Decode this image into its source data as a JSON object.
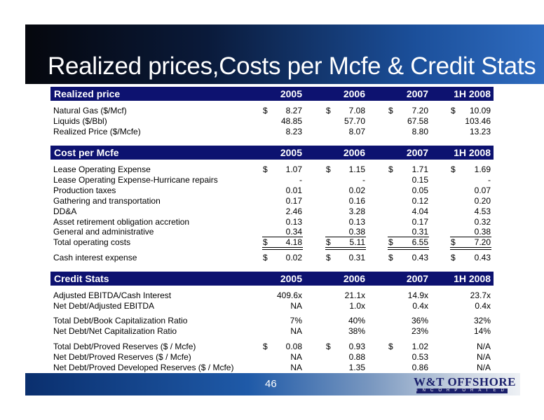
{
  "title": "Realized prices,Costs per Mcfe & Credit Stats",
  "columns": [
    "2005",
    "2006",
    "2007",
    "1H 2008"
  ],
  "realized": {
    "header": "Realized price",
    "rows": [
      {
        "label": "Natural Gas ($/Mcf)",
        "dollar": true,
        "values": [
          "8.27",
          "7.08",
          "7.20",
          "10.09"
        ]
      },
      {
        "label": "Liquids ($/Bbl)",
        "dollar": false,
        "values": [
          "48.85",
          "57.70",
          "67.58",
          "103.46"
        ]
      },
      {
        "label": "Realized Price ($/Mcfe)",
        "dollar": false,
        "values": [
          "8.23",
          "8.07",
          "8.80",
          "13.23"
        ]
      }
    ]
  },
  "cost": {
    "header": "Cost per Mcfe",
    "rows": [
      {
        "label": "Lease Operating Expense",
        "dollar": true,
        "values": [
          "1.07",
          "1.15",
          "1.71",
          "1.69"
        ]
      },
      {
        "label": "Lease Operating Expense-Hurricane repairs",
        "dollar": false,
        "values": [
          "-",
          "-",
          "0.15",
          "-"
        ]
      },
      {
        "label": "Production taxes",
        "dollar": false,
        "values": [
          "0.01",
          "0.02",
          "0.05",
          "0.07"
        ]
      },
      {
        "label": "Gathering and transportation",
        "dollar": false,
        "values": [
          "0.17",
          "0.16",
          "0.12",
          "0.20"
        ]
      },
      {
        "label": "DD&A",
        "dollar": false,
        "values": [
          "2.46",
          "3.28",
          "4.04",
          "4.53"
        ]
      },
      {
        "label": "Asset retirement obligation accretion",
        "dollar": false,
        "values": [
          "0.13",
          "0.13",
          "0.17",
          "0.32"
        ]
      },
      {
        "label": "General and administrative",
        "dollar": false,
        "values": [
          "0.34",
          "0.38",
          "0.31",
          "0.38"
        ]
      },
      {
        "label": "Total operating costs",
        "dollar": true,
        "values": [
          "4.18",
          "5.11",
          "6.55",
          "7.20"
        ]
      },
      {
        "label": "Cash interest expense",
        "dollar": true,
        "values": [
          "0.02",
          "0.31",
          "0.43",
          "0.43"
        ]
      }
    ]
  },
  "credit": {
    "header": "Credit Stats",
    "rows": [
      {
        "label": "Adjusted EBITDA/Cash Interest",
        "dollar": false,
        "values": [
          "409.6x",
          "21.1x",
          "14.9x",
          "23.7x"
        ]
      },
      {
        "label": "Net Debt/Adjusted EBITDA",
        "dollar": false,
        "values": [
          "NA",
          "1.0x",
          "0.4x",
          "0.4x"
        ]
      },
      {
        "label": "Total Debt/Book Capitalization Ratio",
        "dollar": false,
        "values": [
          "7%",
          "40%",
          "36%",
          "32%"
        ]
      },
      {
        "label": "Net Debt/Net Capitalization Ratio",
        "dollar": false,
        "values": [
          "NA",
          "38%",
          "23%",
          "14%"
        ]
      },
      {
        "label": "Total Debt/Proved Reserves ($ / Mcfe)",
        "dollar_cols": [
          true,
          true,
          true,
          false
        ],
        "values": [
          "0.08",
          "0.93",
          "1.02",
          "N/A"
        ]
      },
      {
        "label": "Net Debt/Proved Reserves ($ / Mcfe)",
        "dollar": false,
        "values": [
          "NA",
          "0.88",
          "0.53",
          "N/A"
        ]
      },
      {
        "label": "Net Debt/Proved Developed Reserves ($ / Mcfe)",
        "dollar": false,
        "values": [
          "NA",
          "1.35",
          "0.86",
          "N/A"
        ]
      }
    ]
  },
  "currency_symbol": "$",
  "footer": {
    "page_number": "46",
    "logo_text": "W&T OFFSHORE",
    "logo_subtext": "INCORPORATED"
  },
  "colors": {
    "header_bg": "#0d1270",
    "logo_color": "#1a1f6b"
  }
}
